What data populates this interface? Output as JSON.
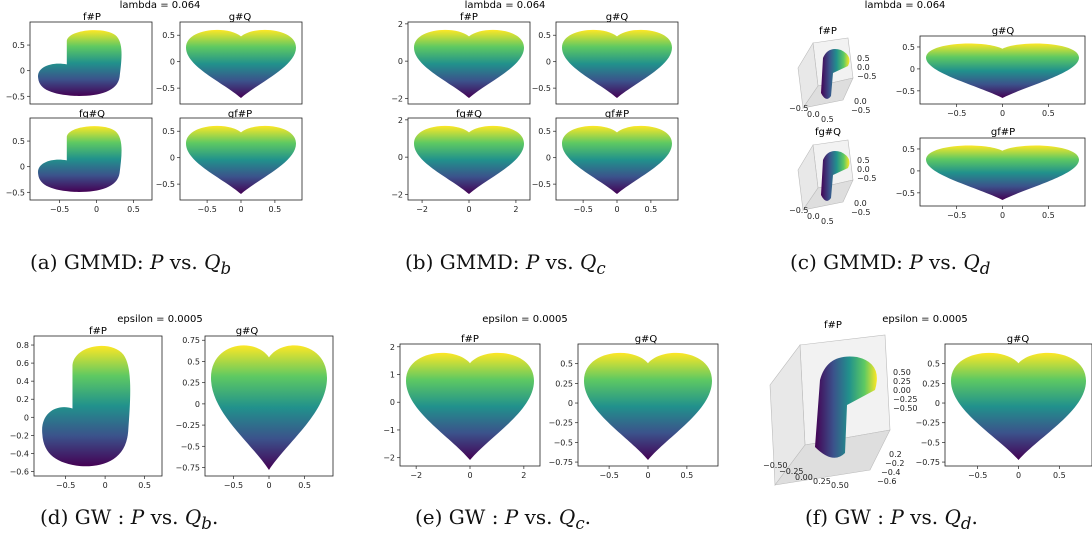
{
  "captions": {
    "a": {
      "label": "(a) GMMD: ",
      "p": "P",
      "mid": " vs. ",
      "q": "Q",
      "sub": "b",
      "end": ""
    },
    "b": {
      "label": "(b) GMMD: ",
      "p": "P",
      "mid": " vs. ",
      "q": "Q",
      "sub": "c",
      "end": ""
    },
    "c": {
      "label": "(c) GMMD: ",
      "p": "P",
      "mid": " vs. ",
      "q": "Q",
      "sub": "d",
      "end": ""
    },
    "d": {
      "label": "(d) GW : ",
      "p": "P",
      "mid": " vs. ",
      "q": "Q",
      "sub": "b",
      "end": "."
    },
    "e": {
      "label": "(e) GW : ",
      "p": "P",
      "mid": " vs. ",
      "q": "Q",
      "sub": "c",
      "end": "."
    },
    "f": {
      "label": "(f) GW : ",
      "p": "P",
      "mid": " vs. ",
      "q": "Q",
      "sub": "d",
      "end": "."
    }
  },
  "suptitles": {
    "gmmd": "lambda = 0.064",
    "gw": "epsilon = 0.0005"
  },
  "panel_titles": {
    "fP": "f#P",
    "gQ": "g#Q",
    "fgQ": "fg#Q",
    "gfP": "gf#P"
  },
  "colormap": [
    "#440154",
    "#3b528b",
    "#21918c",
    "#5ec962",
    "#fde725"
  ],
  "chart_data": [
    {
      "type": "scatter",
      "id": "a-fP",
      "title": "f#P",
      "xlim": [
        -0.9,
        0.75
      ],
      "ylim": [
        -0.65,
        0.95
      ],
      "xticks": [],
      "yticks": [
        0.5,
        0.0,
        -0.5
      ]
    },
    {
      "type": "scatter",
      "id": "a-gQ",
      "title": "g#Q",
      "xlim": [
        -0.9,
        0.9
      ],
      "ylim": [
        -0.8,
        0.75
      ],
      "xticks": [],
      "yticks": [
        0.5,
        0.0,
        -0.5
      ]
    },
    {
      "type": "scatter",
      "id": "a-fgQ",
      "title": "fg#Q",
      "xlim": [
        -0.9,
        0.75
      ],
      "ylim": [
        -0.65,
        0.95
      ],
      "xticks": [
        -0.5,
        0.0,
        0.5
      ],
      "yticks": [
        0.5,
        0.0,
        -0.5
      ]
    },
    {
      "type": "scatter",
      "id": "a-gfP",
      "title": "gf#P",
      "xlim": [
        -0.9,
        0.9
      ],
      "ylim": [
        -0.8,
        0.75
      ],
      "xticks": [
        -0.5,
        0.0,
        0.5
      ],
      "yticks": [
        0.5,
        0.0,
        -0.5
      ]
    },
    {
      "type": "scatter",
      "id": "b-fP",
      "title": "f#P",
      "xlim": [
        -2.6,
        2.6
      ],
      "ylim": [
        -2.3,
        2.1
      ],
      "xticks": [],
      "yticks": [
        2,
        0,
        -2
      ]
    },
    {
      "type": "scatter",
      "id": "b-gQ",
      "title": "g#Q",
      "xlim": [
        -0.9,
        0.9
      ],
      "ylim": [
        -0.8,
        0.75
      ],
      "xticks": [],
      "yticks": [
        0.5,
        0.0,
        -0.5
      ]
    },
    {
      "type": "scatter",
      "id": "b-fgQ",
      "title": "fg#Q",
      "xlim": [
        -2.6,
        2.6
      ],
      "ylim": [
        -2.3,
        2.1
      ],
      "xticks": [
        -2,
        0,
        2
      ],
      "yticks": [
        2,
        0,
        -2
      ]
    },
    {
      "type": "scatter",
      "id": "b-gfP",
      "title": "gf#P",
      "xlim": [
        -0.9,
        0.9
      ],
      "ylim": [
        -0.8,
        0.75
      ],
      "xticks": [
        -0.5,
        0.0,
        0.5
      ],
      "yticks": [
        0.5,
        0.0,
        -0.5
      ]
    },
    {
      "type": "scatter",
      "id": "c-gQ",
      "title": "g#Q",
      "xlim": [
        -0.9,
        0.9
      ],
      "ylim": [
        -0.8,
        0.75
      ],
      "xticks": [
        -0.5,
        0.0,
        0.5
      ],
      "yticks": [
        0.5,
        0.0,
        -0.5
      ]
    },
    {
      "type": "scatter",
      "id": "c-gfP",
      "title": "gf#P",
      "xlim": [
        -0.9,
        0.9
      ],
      "ylim": [
        -0.8,
        0.75
      ],
      "xticks": [
        -0.5,
        0.0,
        0.5
      ],
      "yticks": [
        0.5,
        0.0,
        -0.5
      ]
    },
    {
      "type": "scatter",
      "id": "d-fP",
      "title": "f#P",
      "xlim": [
        -0.9,
        0.72
      ],
      "ylim": [
        -0.65,
        0.9
      ],
      "xticks": [
        -0.5,
        0.0,
        0.5
      ],
      "yticks": [
        0.8,
        0.6,
        0.4,
        0.2,
        0.0,
        -0.2,
        -0.4,
        -0.6
      ]
    },
    {
      "type": "scatter",
      "id": "d-gQ",
      "title": "g#Q",
      "xlim": [
        -0.9,
        0.9
      ],
      "ylim": [
        -0.85,
        0.8
      ],
      "xticks": [
        -0.5,
        0.0,
        0.5
      ],
      "yticks": [
        0.75,
        0.5,
        0.25,
        0.0,
        -0.25,
        -0.5,
        -0.75
      ]
    },
    {
      "type": "scatter",
      "id": "e-fP",
      "title": "f#P",
      "xlim": [
        -2.6,
        2.6
      ],
      "ylim": [
        -2.3,
        2.1
      ],
      "xticks": [
        -2,
        0,
        2
      ],
      "yticks": [
        2,
        1,
        0,
        -1,
        -2
      ]
    },
    {
      "type": "scatter",
      "id": "e-gQ",
      "title": "g#Q",
      "xlim": [
        -0.9,
        0.9
      ],
      "ylim": [
        -0.8,
        0.75
      ],
      "xticks": [
        -0.5,
        0.0,
        0.5
      ],
      "yticks": [
        0.5,
        0.25,
        0.0,
        -0.25,
        -0.5,
        -0.75
      ]
    },
    {
      "type": "scatter",
      "id": "f-gQ",
      "title": "g#Q",
      "xlim": [
        -0.9,
        0.9
      ],
      "ylim": [
        -0.8,
        0.75
      ],
      "xticks": [
        -0.5,
        0.0,
        0.5
      ],
      "yticks": [
        0.5,
        0.25,
        0.0,
        -0.25,
        -0.5,
        -0.75
      ]
    }
  ]
}
